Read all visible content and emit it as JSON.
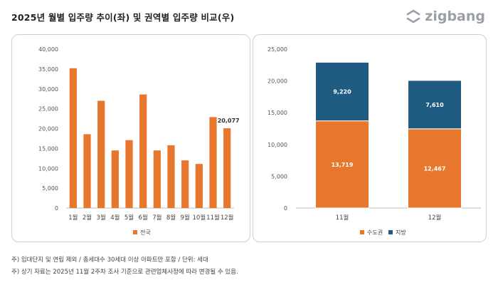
{
  "title": "2025년 월별 입주량 추이(좌) 및 권역별 입주량 비교(우)",
  "brand": {
    "name": "zigbang",
    "color": "#9aa0a6"
  },
  "footnotes": [
    "주) 임대단지 및 연립 제외 / 총세대수 30세대 이상 아파트만 포함 / 단위: 세대",
    "주) 상기 자료는 2025년 11월 2주차 조사 기준으로 관련업체사정에 따라 변경될 수 있음."
  ],
  "chart_data": [
    {
      "type": "bar",
      "categories": [
        "1월",
        "2월",
        "3월",
        "4월",
        "5월",
        "6월",
        "7월",
        "8월",
        "9월",
        "10월",
        "11월",
        "12월"
      ],
      "series": [
        {
          "name": "전국",
          "values": [
            35200,
            18600,
            27000,
            14500,
            17100,
            28600,
            14500,
            15800,
            12000,
            11100,
            22900,
            20077
          ],
          "color": "#e8772e"
        }
      ],
      "data_labels": [
        {
          "index": 11,
          "text": "20,077"
        }
      ],
      "ylim": [
        0,
        40000
      ],
      "yticks": [
        0,
        5000,
        10000,
        15000,
        20000,
        25000,
        30000,
        35000,
        40000
      ],
      "legend": "bottom",
      "grid": false
    },
    {
      "type": "bar",
      "stacked": true,
      "categories": [
        "11월",
        "12월"
      ],
      "series": [
        {
          "name": "수도권",
          "values": [
            13719,
            12467
          ],
          "labels": [
            "13,719",
            "12,467"
          ],
          "color": "#e8772e"
        },
        {
          "name": "지방",
          "values": [
            9220,
            7610
          ],
          "labels": [
            "9,220",
            "7,610"
          ],
          "color": "#1f5b80"
        }
      ],
      "ylim": [
        0,
        25000
      ],
      "yticks": [
        0,
        5000,
        10000,
        15000,
        20000,
        25000
      ],
      "legend": "bottom",
      "grid": false
    }
  ]
}
